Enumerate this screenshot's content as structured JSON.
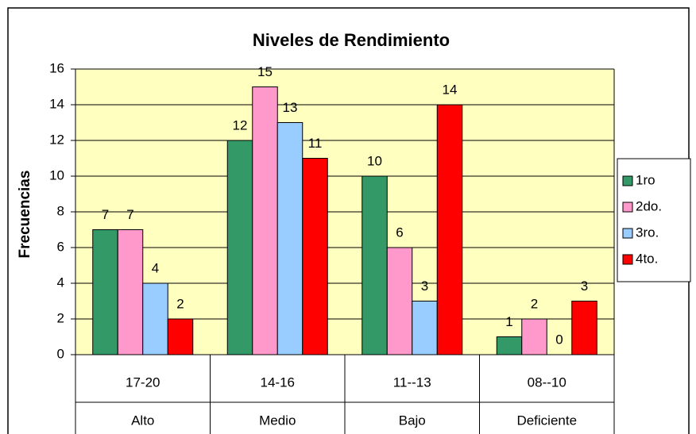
{
  "chart_data": {
    "type": "bar",
    "title": "Niveles de Rendimiento",
    "y_label": "Frecuencias",
    "categories": [
      "17-20",
      "14-16",
      "11--13",
      "08--10"
    ],
    "category_groups": [
      "Alto",
      "Medio",
      "Bajo",
      "Deficiente"
    ],
    "series": [
      {
        "name": "1ro",
        "color": "#339966",
        "values": [
          7,
          12,
          10,
          1
        ]
      },
      {
        "name": "2do.",
        "color": "#ff99cc",
        "values": [
          7,
          15,
          6,
          2
        ]
      },
      {
        "name": "3ro.",
        "color": "#99ccff",
        "values": [
          4,
          13,
          3,
          0
        ]
      },
      {
        "name": "4to.",
        "color": "#ff0000",
        "values": [
          2,
          11,
          14,
          3
        ]
      }
    ],
    "ylim": [
      0,
      16
    ],
    "yticks": [
      0,
      2,
      4,
      6,
      8,
      10,
      12,
      14,
      16
    ],
    "grid": true,
    "legend": "right"
  }
}
